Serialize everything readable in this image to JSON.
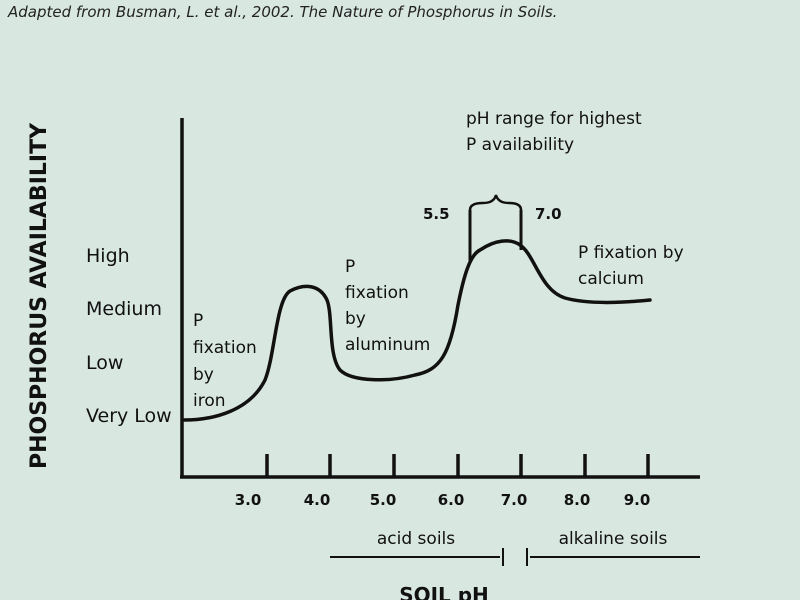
{
  "source": "Adapted from Busman, L. et al., 2002. The Nature of Phosphorus in Soils.",
  "chart_data": {
    "type": "line",
    "ylabel": "PHOSPHORUS AVAILABILITY",
    "xlabel": "SOIL pH",
    "y_levels": [
      "Very Low",
      "Low",
      "Medium",
      "High"
    ],
    "x_ticks": [
      "3.0",
      "4.0",
      "5.0",
      "6.0",
      "7.0",
      "8.0",
      "9.0"
    ],
    "annotations": {
      "iron": [
        "P",
        "fixation",
        "by",
        "iron"
      ],
      "aluminum": [
        "P",
        "fixation",
        "by",
        "aluminum"
      ],
      "calcium": [
        "P  fixation by",
        "calcium"
      ],
      "highest": [
        "pH range for highest",
        "P availability"
      ]
    },
    "bracket": {
      "low": "5.5",
      "high": "7.0"
    },
    "soil_ranges": {
      "acid": "acid soils",
      "alkaline": "alkaline soils"
    }
  }
}
